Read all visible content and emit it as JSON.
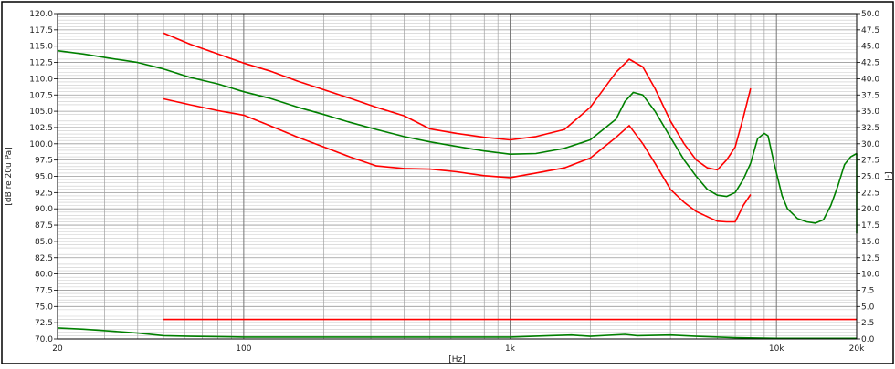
{
  "chart_data": {
    "type": "line",
    "x_scale": "log",
    "xlabel": "[Hz]",
    "ylabel": "[dB re 20u Pa]",
    "ylabel_right": "[-]",
    "xlim": [
      20,
      20000
    ],
    "ylim": [
      70,
      120
    ],
    "ylim_right": [
      0,
      50
    ],
    "grid": true,
    "x_ticks": [
      {
        "value": 20,
        "label": "20"
      },
      {
        "value": 100,
        "label": "100"
      },
      {
        "value": 1000,
        "label": "1k"
      },
      {
        "value": 10000,
        "label": "10k"
      },
      {
        "value": 20000,
        "label": "20k"
      }
    ],
    "y_ticks": [
      "120.0",
      "117.5",
      "115.0",
      "112.5",
      "110.0",
      "107.5",
      "105.0",
      "102.5",
      "100.0",
      "97.5",
      "95.0",
      "92.5",
      "90.0",
      "87.5",
      "85.0",
      "82.5",
      "80.0",
      "77.5",
      "75.0",
      "72.5",
      "70.0"
    ],
    "y_ticks_right": [
      "50.0",
      "47.5",
      "45.0",
      "42.5",
      "40.0",
      "37.5",
      "35.0",
      "32.5",
      "30.0",
      "27.5",
      "25.0",
      "22.5",
      "20.0",
      "17.5",
      "15.0",
      "12.5",
      "10.0",
      "7.5",
      "5.0",
      "2.5",
      "0.0"
    ],
    "colors": {
      "green": "#008000",
      "red": "#ff0000",
      "grid": "#b8b8b8",
      "axis": "#000000"
    },
    "series": [
      {
        "color": "#008000",
        "axis": "left",
        "points": [
          [
            20,
            114.3
          ],
          [
            25,
            113.8
          ],
          [
            32,
            113.1
          ],
          [
            40,
            112.5
          ],
          [
            50,
            111.5
          ],
          [
            63,
            110.2
          ],
          [
            80,
            109.2
          ],
          [
            100,
            108.0
          ],
          [
            125,
            107.0
          ],
          [
            160,
            105.6
          ],
          [
            200,
            104.5
          ],
          [
            250,
            103.3
          ],
          [
            315,
            102.2
          ],
          [
            400,
            101.1
          ],
          [
            500,
            100.3
          ],
          [
            630,
            99.6
          ],
          [
            800,
            98.9
          ],
          [
            1000,
            98.4
          ],
          [
            1250,
            98.5
          ],
          [
            1600,
            99.3
          ],
          [
            2000,
            100.6
          ],
          [
            2500,
            103.8
          ],
          [
            2700,
            106.5
          ],
          [
            2900,
            107.9
          ],
          [
            3150,
            107.5
          ],
          [
            3500,
            105.0
          ],
          [
            4000,
            101.0
          ],
          [
            4500,
            97.5
          ],
          [
            5000,
            95.0
          ],
          [
            5500,
            93.0
          ],
          [
            6000,
            92.1
          ],
          [
            6500,
            91.9
          ],
          [
            7000,
            92.5
          ],
          [
            7500,
            94.5
          ],
          [
            8000,
            97.0
          ],
          [
            8500,
            100.8
          ],
          [
            9000,
            101.6
          ],
          [
            9300,
            101.2
          ],
          [
            9800,
            97.0
          ],
          [
            10500,
            92.0
          ],
          [
            11000,
            90.0
          ],
          [
            12000,
            88.5
          ],
          [
            13000,
            88.0
          ],
          [
            14000,
            87.8
          ],
          [
            15000,
            88.3
          ],
          [
            16000,
            90.5
          ],
          [
            17000,
            93.5
          ],
          [
            18000,
            96.8
          ],
          [
            19000,
            98.0
          ],
          [
            20000,
            98.5
          ],
          [
            21000,
            97.5
          ],
          [
            22000,
            96.5
          ],
          [
            23000,
            97.0
          ],
          [
            24000,
            97.2
          ],
          [
            25000,
            86.2
          ]
        ]
      },
      {
        "color": "#ff0000",
        "axis": "left",
        "points": [
          [
            50,
            117.0
          ],
          [
            63,
            115.3
          ],
          [
            80,
            113.8
          ],
          [
            100,
            112.4
          ],
          [
            125,
            111.2
          ],
          [
            160,
            109.6
          ],
          [
            200,
            108.3
          ],
          [
            250,
            107.0
          ],
          [
            315,
            105.6
          ],
          [
            400,
            104.3
          ],
          [
            500,
            102.3
          ],
          [
            630,
            101.6
          ],
          [
            800,
            101.0
          ],
          [
            1000,
            100.6
          ],
          [
            1250,
            101.1
          ],
          [
            1600,
            102.2
          ],
          [
            2000,
            105.6
          ],
          [
            2500,
            111.0
          ],
          [
            2800,
            113.0
          ],
          [
            3150,
            111.8
          ],
          [
            3500,
            108.5
          ],
          [
            4000,
            103.5
          ],
          [
            4500,
            100.0
          ],
          [
            5000,
            97.5
          ],
          [
            5500,
            96.3
          ],
          [
            6000,
            96.0
          ],
          [
            6500,
            97.5
          ],
          [
            7000,
            99.5
          ],
          [
            7500,
            104.0
          ],
          [
            8000,
            108.5
          ]
        ]
      },
      {
        "color": "#ff0000",
        "axis": "left",
        "points": [
          [
            50,
            106.9
          ],
          [
            63,
            106.0
          ],
          [
            80,
            105.1
          ],
          [
            100,
            104.4
          ],
          [
            125,
            102.8
          ],
          [
            160,
            101.0
          ],
          [
            200,
            99.5
          ],
          [
            250,
            98.0
          ],
          [
            315,
            96.6
          ],
          [
            400,
            96.2
          ],
          [
            500,
            96.1
          ],
          [
            630,
            95.7
          ],
          [
            800,
            95.1
          ],
          [
            1000,
            94.8
          ],
          [
            1250,
            95.5
          ],
          [
            1600,
            96.3
          ],
          [
            2000,
            97.8
          ],
          [
            2500,
            101.0
          ],
          [
            2800,
            102.8
          ],
          [
            3150,
            100.0
          ],
          [
            3500,
            97.0
          ],
          [
            4000,
            93.0
          ],
          [
            4500,
            91.0
          ],
          [
            5000,
            89.6
          ],
          [
            5500,
            88.8
          ],
          [
            6000,
            88.1
          ],
          [
            6500,
            88.0
          ],
          [
            7000,
            88.0
          ],
          [
            7500,
            90.5
          ],
          [
            8000,
            92.2
          ]
        ]
      },
      {
        "color": "#ff0000",
        "axis": "right",
        "points": [
          [
            50,
            3.0
          ],
          [
            25000,
            3.0
          ]
        ]
      },
      {
        "color": "#008000",
        "axis": "right",
        "points": [
          [
            20,
            1.7
          ],
          [
            25,
            1.5
          ],
          [
            32,
            1.2
          ],
          [
            40,
            0.9
          ],
          [
            50,
            0.5
          ],
          [
            63,
            0.4
          ],
          [
            100,
            0.3
          ],
          [
            200,
            0.3
          ],
          [
            500,
            0.3
          ],
          [
            1000,
            0.3
          ],
          [
            1400,
            0.5
          ],
          [
            1700,
            0.6
          ],
          [
            2000,
            0.4
          ],
          [
            2700,
            0.7
          ],
          [
            3000,
            0.5
          ],
          [
            4000,
            0.6
          ],
          [
            5000,
            0.4
          ],
          [
            7000,
            0.2
          ],
          [
            10000,
            0.1
          ],
          [
            20000,
            0.1
          ],
          [
            25000,
            0.1
          ]
        ]
      }
    ]
  }
}
